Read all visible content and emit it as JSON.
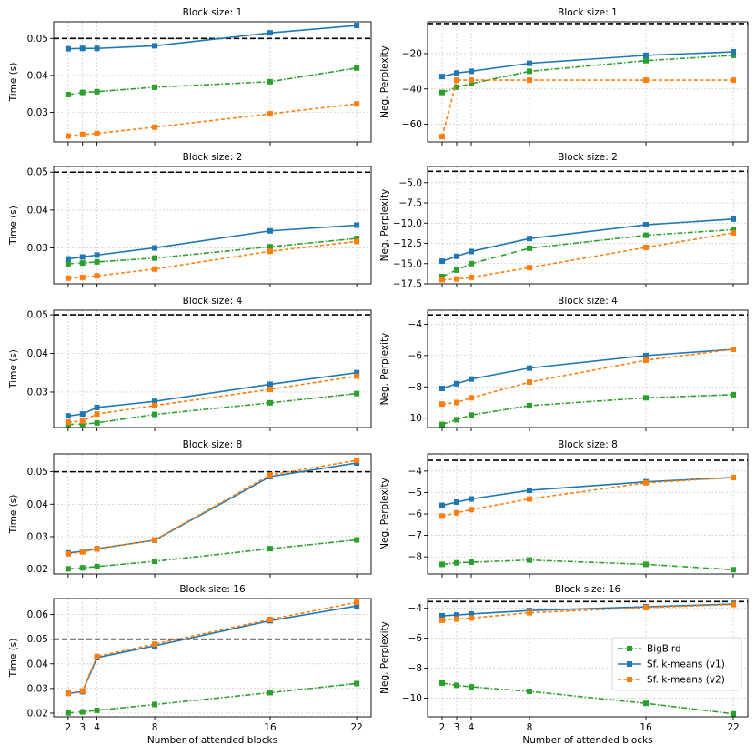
{
  "colors": {
    "bigbird": "#2ca02c",
    "v1": "#1f77b4",
    "v2": "#ff7f0e",
    "reference": "#000000"
  },
  "x_values": [
    2,
    3,
    4,
    8,
    16,
    22
  ],
  "x_tick_labels": [
    "2",
    "3",
    "4",
    "8",
    "16",
    "22"
  ],
  "xlabel": "Number of attended blocks",
  "legend": {
    "placement": "lower-right",
    "entries": [
      "BigBird",
      "Sf. k-means (v1)",
      "Sf. k-means (v2)"
    ]
  },
  "chart_data": [
    {
      "type": "line",
      "title": "Block size: 1",
      "ylabel": "Time (s)",
      "ylim": [
        0.022,
        0.0545
      ],
      "yticks": [
        0.03,
        0.04,
        0.05
      ],
      "ytick_labels": [
        "0.03",
        "0.04",
        "0.05"
      ],
      "reference_line": 0.05,
      "series": [
        {
          "name": "BigBird",
          "values": [
            0.0348,
            0.0354,
            0.0356,
            0.0368,
            0.0383,
            0.042
          ]
        },
        {
          "name": "Sf. k-means (v1)",
          "values": [
            0.0472,
            0.0473,
            0.0473,
            0.048,
            0.0515,
            0.0535
          ]
        },
        {
          "name": "Sf. k-means (v2)",
          "values": [
            0.0236,
            0.024,
            0.0243,
            0.026,
            0.0296,
            0.0323
          ]
        }
      ]
    },
    {
      "type": "line",
      "title": "Block size: 1",
      "ylabel": "Neg. Perplexity",
      "ylim": [
        -70,
        -2
      ],
      "yticks": [
        -60,
        -40,
        -20
      ],
      "ytick_labels": [
        "−60",
        "−40",
        "−20"
      ],
      "reference_line": -3,
      "series": [
        {
          "name": "BigBird",
          "values": [
            -42,
            -39,
            -37,
            -30,
            -24,
            -21
          ]
        },
        {
          "name": "Sf. k-means (v1)",
          "values": [
            -33,
            -31,
            -30,
            -25.5,
            -21,
            -19
          ]
        },
        {
          "name": "Sf. k-means (v2)",
          "values": [
            -67,
            -35,
            -35,
            -35,
            -35,
            -35
          ]
        }
      ]
    },
    {
      "type": "line",
      "title": "Block size: 2",
      "ylabel": "Time (s)",
      "ylim": [
        0.0205,
        0.0515
      ],
      "yticks": [
        0.03,
        0.04,
        0.05
      ],
      "ytick_labels": [
        "0.03",
        "0.04",
        "0.05"
      ],
      "reference_line": 0.05,
      "series": [
        {
          "name": "BigBird",
          "values": [
            0.0258,
            0.026,
            0.0263,
            0.0273,
            0.0303,
            0.0325
          ]
        },
        {
          "name": "Sf. k-means (v1)",
          "values": [
            0.0271,
            0.0276,
            0.0281,
            0.03,
            0.0345,
            0.036
          ]
        },
        {
          "name": "Sf. k-means (v2)",
          "values": [
            0.022,
            0.0222,
            0.0226,
            0.0244,
            0.0291,
            0.0317
          ]
        }
      ]
    },
    {
      "type": "line",
      "title": "Block size: 2",
      "ylabel": "Neg. Perplexity",
      "ylim": [
        -17.5,
        -3
      ],
      "yticks": [
        -17.5,
        -15.0,
        -12.5,
        -10.0,
        -7.5,
        -5.0
      ],
      "ytick_labels": [
        "−17.5",
        "−15.0",
        "−12.5",
        "−10.0",
        "−7.5",
        "−5.0"
      ],
      "reference_line": -3.6,
      "series": [
        {
          "name": "BigBird",
          "values": [
            -16.6,
            -15.8,
            -15.0,
            -13.1,
            -11.5,
            -10.8
          ]
        },
        {
          "name": "Sf. k-means (v1)",
          "values": [
            -14.7,
            -14.1,
            -13.5,
            -11.9,
            -10.2,
            -9.5
          ]
        },
        {
          "name": "Sf. k-means (v2)",
          "values": [
            -17.0,
            -16.9,
            -16.7,
            -15.5,
            -13.0,
            -11.2
          ]
        }
      ]
    },
    {
      "type": "line",
      "title": "Block size: 4",
      "ylabel": "Time (s)",
      "ylim": [
        0.0208,
        0.0512
      ],
      "yticks": [
        0.03,
        0.04,
        0.05
      ],
      "ytick_labels": [
        "0.03",
        "0.04",
        "0.05"
      ],
      "reference_line": 0.05,
      "series": [
        {
          "name": "BigBird",
          "values": [
            0.0216,
            0.0217,
            0.022,
            0.0242,
            0.0272,
            0.0296
          ]
        },
        {
          "name": "Sf. k-means (v1)",
          "values": [
            0.0238,
            0.0243,
            0.026,
            0.0276,
            0.032,
            0.035
          ]
        },
        {
          "name": "Sf. k-means (v2)",
          "values": [
            0.0222,
            0.0225,
            0.0243,
            0.0265,
            0.0307,
            0.0341
          ]
        }
      ]
    },
    {
      "type": "line",
      "title": "Block size: 4",
      "ylabel": "Neg. Perplexity",
      "ylim": [
        -10.6,
        -3.1
      ],
      "yticks": [
        -10,
        -8,
        -6,
        -4
      ],
      "ytick_labels": [
        "−10",
        "−8",
        "−6",
        "−4"
      ],
      "reference_line": -3.4,
      "series": [
        {
          "name": "BigBird",
          "values": [
            -10.4,
            -10.1,
            -9.8,
            -9.2,
            -8.7,
            -8.5
          ]
        },
        {
          "name": "Sf. k-means (v1)",
          "values": [
            -8.1,
            -7.8,
            -7.5,
            -6.8,
            -6.0,
            -5.6
          ]
        },
        {
          "name": "Sf. k-means (v2)",
          "values": [
            -9.1,
            -9.0,
            -8.7,
            -7.7,
            -6.3,
            -5.6
          ]
        }
      ]
    },
    {
      "type": "line",
      "title": "Block size: 8",
      "ylabel": "Time (s)",
      "ylim": [
        0.0185,
        0.0555
      ],
      "yticks": [
        0.02,
        0.03,
        0.04,
        0.05
      ],
      "ytick_labels": [
        "0.02",
        "0.03",
        "0.04",
        "0.05"
      ],
      "reference_line": 0.05,
      "series": [
        {
          "name": "BigBird",
          "values": [
            0.0201,
            0.0204,
            0.0208,
            0.0224,
            0.0263,
            0.029
          ]
        },
        {
          "name": "Sf. k-means (v1)",
          "values": [
            0.025,
            0.0255,
            0.0263,
            0.0289,
            0.0485,
            0.0527
          ]
        },
        {
          "name": "Sf. k-means (v2)",
          "values": [
            0.0247,
            0.0253,
            0.0262,
            0.029,
            0.049,
            0.0535
          ]
        }
      ]
    },
    {
      "type": "line",
      "title": "Block size: 8",
      "ylabel": "Neg. Perplexity",
      "ylim": [
        -8.8,
        -3.2
      ],
      "yticks": [
        -8,
        -7,
        -6,
        -5,
        -4
      ],
      "ytick_labels": [
        "−8",
        "−7",
        "−6",
        "−5",
        "−4"
      ],
      "reference_line": -3.5,
      "series": [
        {
          "name": "BigBird",
          "values": [
            -8.35,
            -8.28,
            -8.25,
            -8.15,
            -8.35,
            -8.6
          ]
        },
        {
          "name": "Sf. k-means (v1)",
          "values": [
            -5.6,
            -5.45,
            -5.3,
            -4.9,
            -4.5,
            -4.3
          ]
        },
        {
          "name": "Sf. k-means (v2)",
          "values": [
            -6.1,
            -5.95,
            -5.8,
            -5.3,
            -4.55,
            -4.3
          ]
        }
      ]
    },
    {
      "type": "line",
      "title": "Block size: 16",
      "ylabel": "Time (s)",
      "ylim": [
        0.0185,
        0.0665
      ],
      "yticks": [
        0.02,
        0.03,
        0.04,
        0.05,
        0.06
      ],
      "ytick_labels": [
        "0.02",
        "0.03",
        "0.04",
        "0.05",
        "0.06"
      ],
      "reference_line": 0.05,
      "series": [
        {
          "name": "BigBird",
          "values": [
            0.0201,
            0.0205,
            0.0211,
            0.0235,
            0.0283,
            0.032
          ]
        },
        {
          "name": "Sf. k-means (v1)",
          "values": [
            0.028,
            0.0287,
            0.0425,
            0.0473,
            0.0575,
            0.0635
          ]
        },
        {
          "name": "Sf. k-means (v2)",
          "values": [
            0.0281,
            0.029,
            0.043,
            0.048,
            0.058,
            0.065
          ]
        }
      ]
    },
    {
      "type": "line",
      "title": "Block size: 16",
      "ylabel": "Neg. Perplexity",
      "ylim": [
        -11.25,
        -3.35
      ],
      "yticks": [
        -10,
        -8,
        -6,
        -4
      ],
      "ytick_labels": [
        "−10",
        "−8",
        "−6",
        "−4"
      ],
      "reference_line": -3.55,
      "series": [
        {
          "name": "BigBird",
          "values": [
            -9.0,
            -9.15,
            -9.25,
            -9.55,
            -10.35,
            -11.05
          ]
        },
        {
          "name": "Sf. k-means (v1)",
          "values": [
            -4.5,
            -4.45,
            -4.38,
            -4.15,
            -3.9,
            -3.72
          ]
        },
        {
          "name": "Sf. k-means (v2)",
          "values": [
            -4.8,
            -4.72,
            -4.65,
            -4.3,
            -3.95,
            -3.75
          ]
        }
      ]
    }
  ]
}
